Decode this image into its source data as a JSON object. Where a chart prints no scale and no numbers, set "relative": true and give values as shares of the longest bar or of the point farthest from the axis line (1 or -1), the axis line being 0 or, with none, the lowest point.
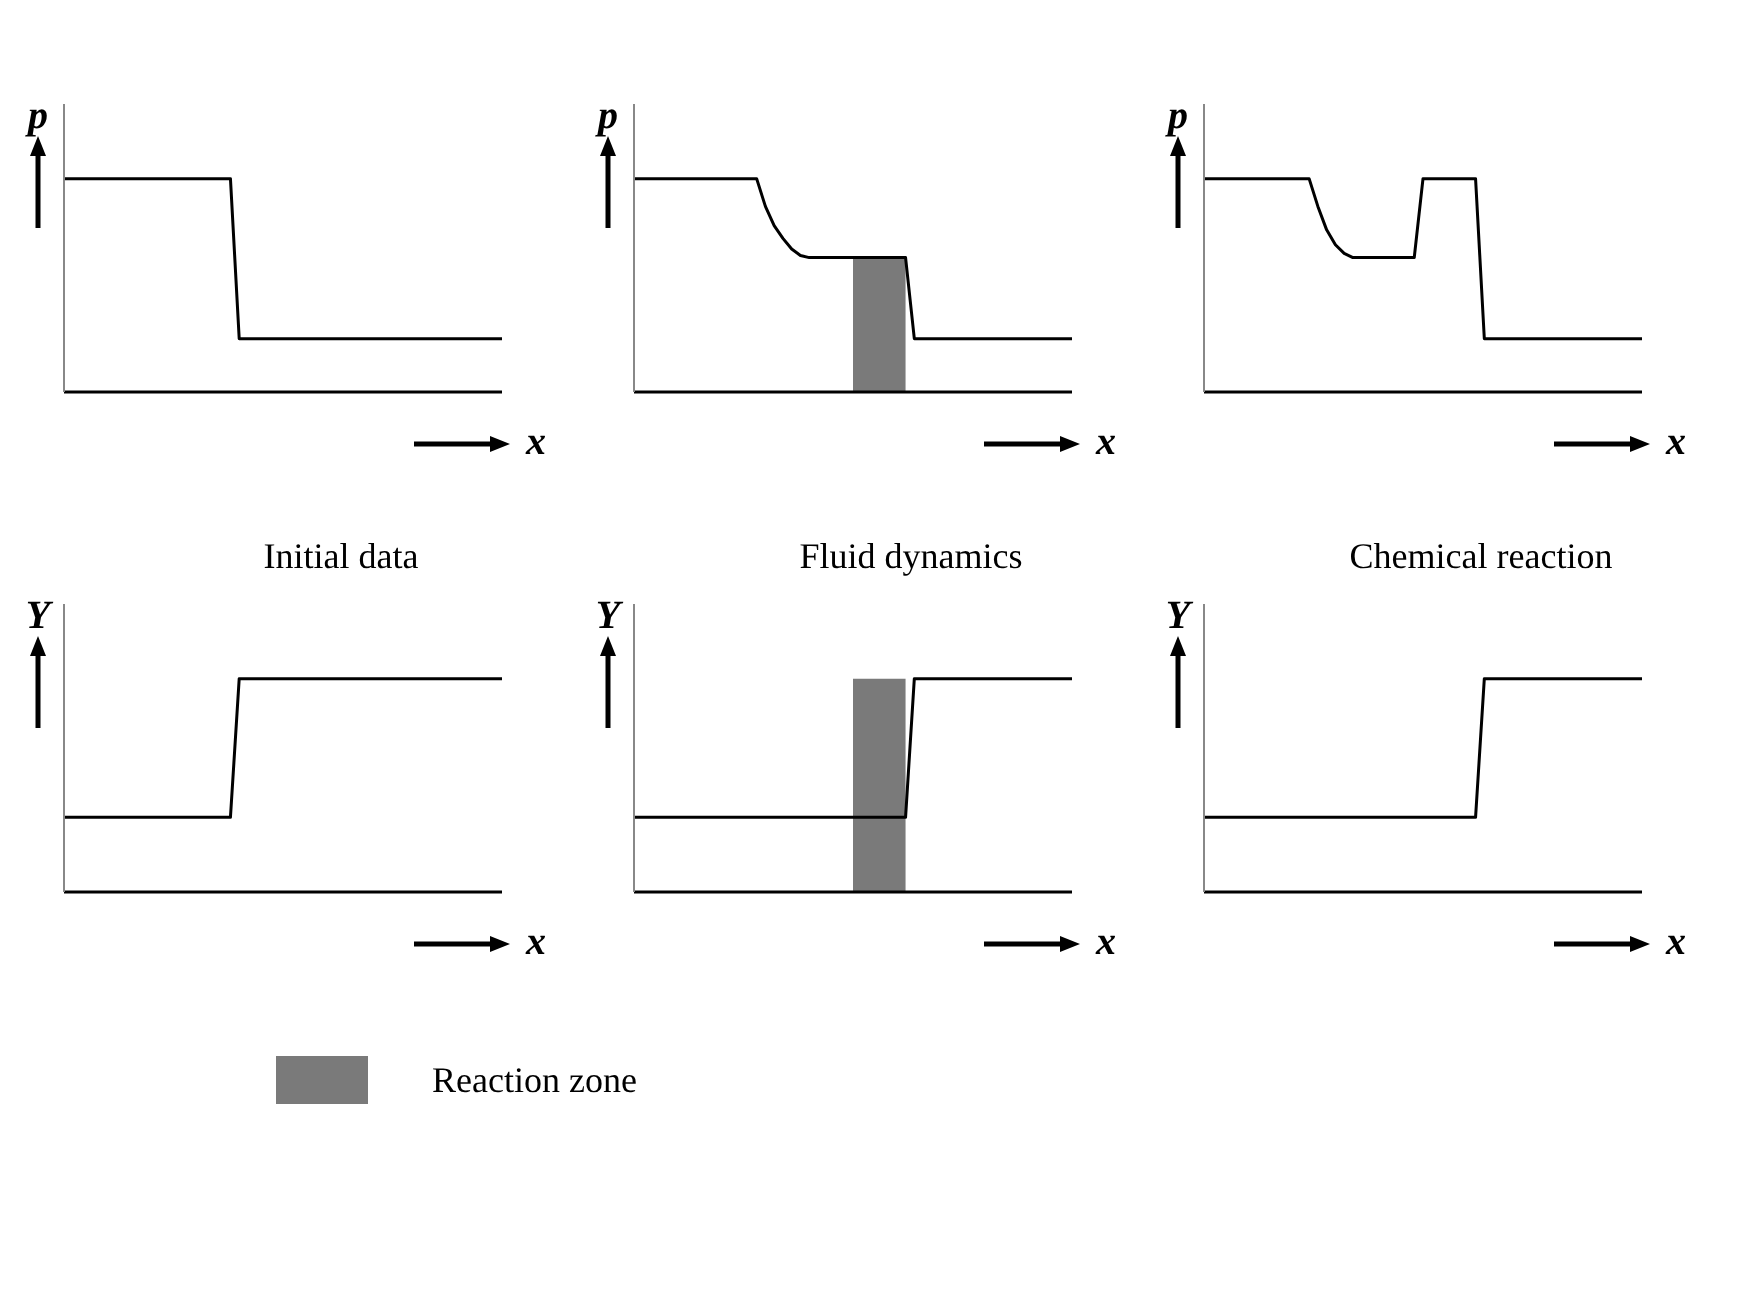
{
  "chart_data": [
    {
      "type": "line",
      "ylabel": "p",
      "xlabel": "x",
      "relative": true,
      "categories": [
        null,
        null,
        null,
        null,
        null,
        null,
        null,
        null,
        null,
        null,
        null,
        null,
        null,
        null,
        null,
        null,
        null,
        null,
        null,
        null,
        null,
        null,
        null,
        null,
        null,
        null,
        null,
        null,
        null,
        null,
        null,
        null,
        null,
        null,
        null,
        null,
        null,
        null,
        null,
        null,
        null,
        null,
        null,
        null,
        null,
        null,
        null,
        null,
        null,
        null,
        null
      ],
      "series": [
        {
          "color": "#000000",
          "values": [
            1,
            1,
            1,
            1,
            1,
            1,
            1,
            1,
            1,
            1,
            1,
            1,
            1,
            1,
            1,
            1,
            1,
            1,
            1,
            1,
            0.25,
            0.25,
            0.25,
            0.25,
            0.25,
            0.25,
            0.25,
            0.25,
            0.25,
            0.25,
            0.25,
            0.25,
            0.25,
            0.25,
            0.25,
            0.25,
            0.25,
            0.25,
            0.25,
            0.25,
            0.25,
            0.25,
            0.25,
            0.25,
            0.25,
            0.25,
            0.25,
            0.25,
            0.25,
            0.25,
            0.25
          ]
        }
      ]
    },
    {
      "type": "line",
      "ylabel": "p",
      "xlabel": "x",
      "relative": true,
      "categories": [
        null,
        null,
        null,
        null,
        null,
        null,
        null,
        null,
        null,
        null,
        null,
        null,
        null,
        null,
        null,
        null,
        null,
        null,
        null,
        null,
        null,
        null,
        null,
        null,
        null,
        null,
        null,
        null,
        null,
        null,
        null,
        null,
        null,
        null,
        null,
        null,
        null,
        null,
        null,
        null,
        null,
        null,
        null,
        null,
        null,
        null,
        null,
        null,
        null,
        null,
        null
      ],
      "series": [
        {
          "type": "area",
          "color": "#7a7a7a",
          "values": [
            null,
            null,
            null,
            null,
            null,
            null,
            null,
            null,
            null,
            null,
            null,
            null,
            null,
            null,
            null,
            null,
            null,
            null,
            null,
            null,
            null,
            null,
            null,
            null,
            null,
            0.63,
            0.63,
            0.63,
            0.63,
            0.63,
            0.63,
            0.63,
            null,
            null,
            null,
            null,
            null,
            null,
            null,
            null,
            null,
            null,
            null,
            null,
            null,
            null,
            null,
            null,
            null,
            null,
            null
          ]
        },
        {
          "color": "#000000",
          "values": [
            1,
            1,
            1,
            1,
            1,
            1,
            1,
            1,
            1,
            1,
            1,
            1,
            1,
            1,
            1,
            0.87,
            0.78,
            0.72,
            0.67,
            0.64,
            0.63,
            0.63,
            0.63,
            0.63,
            0.63,
            0.63,
            0.63,
            0.63,
            0.63,
            0.63,
            0.63,
            0.63,
            0.25,
            0.25,
            0.25,
            0.25,
            0.25,
            0.25,
            0.25,
            0.25,
            0.25,
            0.25,
            0.25,
            0.25,
            0.25,
            0.25,
            0.25,
            0.25,
            0.25,
            0.25,
            0.25
          ]
        }
      ]
    },
    {
      "type": "line",
      "ylabel": "p",
      "xlabel": "x",
      "relative": true,
      "categories": [
        null,
        null,
        null,
        null,
        null,
        null,
        null,
        null,
        null,
        null,
        null,
        null,
        null,
        null,
        null,
        null,
        null,
        null,
        null,
        null,
        null,
        null,
        null,
        null,
        null,
        null,
        null,
        null,
        null,
        null,
        null,
        null,
        null,
        null,
        null,
        null,
        null,
        null,
        null,
        null,
        null,
        null,
        null,
        null,
        null,
        null,
        null,
        null,
        null,
        null,
        null
      ],
      "series": [
        {
          "color": "#000000",
          "values": [
            1,
            1,
            1,
            1,
            1,
            1,
            1,
            1,
            1,
            1,
            1,
            1,
            1,
            0.87,
            0.76,
            0.69,
            0.65,
            0.63,
            0.63,
            0.63,
            0.63,
            0.63,
            0.63,
            0.63,
            0.63,
            1,
            1,
            1,
            1,
            1,
            1,
            1,
            0.25,
            0.25,
            0.25,
            0.25,
            0.25,
            0.25,
            0.25,
            0.25,
            0.25,
            0.25,
            0.25,
            0.25,
            0.25,
            0.25,
            0.25,
            0.25,
            0.25,
            0.25,
            0.25
          ]
        }
      ]
    },
    {
      "type": "line",
      "title": "Initial data",
      "ylabel": "Y",
      "xlabel": "x",
      "relative": true,
      "categories": [
        null,
        null,
        null,
        null,
        null,
        null,
        null,
        null,
        null,
        null,
        null,
        null,
        null,
        null,
        null,
        null,
        null,
        null,
        null,
        null,
        null,
        null,
        null,
        null,
        null,
        null,
        null,
        null,
        null,
        null,
        null,
        null,
        null,
        null,
        null,
        null,
        null,
        null,
        null,
        null,
        null,
        null,
        null,
        null,
        null,
        null,
        null,
        null,
        null,
        null,
        null
      ],
      "series": [
        {
          "color": "#000000",
          "values": [
            0.35,
            0.35,
            0.35,
            0.35,
            0.35,
            0.35,
            0.35,
            0.35,
            0.35,
            0.35,
            0.35,
            0.35,
            0.35,
            0.35,
            0.35,
            0.35,
            0.35,
            0.35,
            0.35,
            0.35,
            1,
            1,
            1,
            1,
            1,
            1,
            1,
            1,
            1,
            1,
            1,
            1,
            1,
            1,
            1,
            1,
            1,
            1,
            1,
            1,
            1,
            1,
            1,
            1,
            1,
            1,
            1,
            1,
            1,
            1,
            1
          ]
        }
      ]
    },
    {
      "type": "line",
      "title": "Fluid dynamics",
      "ylabel": "Y",
      "xlabel": "x",
      "relative": true,
      "legend": "bottom",
      "categories": [
        null,
        null,
        null,
        null,
        null,
        null,
        null,
        null,
        null,
        null,
        null,
        null,
        null,
        null,
        null,
        null,
        null,
        null,
        null,
        null,
        null,
        null,
        null,
        null,
        null,
        null,
        null,
        null,
        null,
        null,
        null,
        null,
        null,
        null,
        null,
        null,
        null,
        null,
        null,
        null,
        null,
        null,
        null,
        null,
        null,
        null,
        null,
        null,
        null,
        null,
        null
      ],
      "series": [
        {
          "type": "area",
          "name": "Reaction zone",
          "color": "#7a7a7a",
          "values": [
            null,
            null,
            null,
            null,
            null,
            null,
            null,
            null,
            null,
            null,
            null,
            null,
            null,
            null,
            null,
            null,
            null,
            null,
            null,
            null,
            null,
            null,
            null,
            null,
            null,
            1,
            1,
            1,
            1,
            1,
            1,
            1,
            null,
            null,
            null,
            null,
            null,
            null,
            null,
            null,
            null,
            null,
            null,
            null,
            null,
            null,
            null,
            null,
            null,
            null,
            null
          ]
        },
        {
          "color": "#000000",
          "values": [
            0.35,
            0.35,
            0.35,
            0.35,
            0.35,
            0.35,
            0.35,
            0.35,
            0.35,
            0.35,
            0.35,
            0.35,
            0.35,
            0.35,
            0.35,
            0.35,
            0.35,
            0.35,
            0.35,
            0.35,
            0.35,
            0.35,
            0.35,
            0.35,
            0.35,
            0.35,
            0.35,
            0.35,
            0.35,
            0.35,
            0.35,
            0.35,
            1,
            1,
            1,
            1,
            1,
            1,
            1,
            1,
            1,
            1,
            1,
            1,
            1,
            1,
            1,
            1,
            1,
            1,
            1
          ]
        }
      ]
    },
    {
      "type": "line",
      "title": "Chemical reaction",
      "ylabel": "Y",
      "xlabel": "x",
      "relative": true,
      "categories": [
        null,
        null,
        null,
        null,
        null,
        null,
        null,
        null,
        null,
        null,
        null,
        null,
        null,
        null,
        null,
        null,
        null,
        null,
        null,
        null,
        null,
        null,
        null,
        null,
        null,
        null,
        null,
        null,
        null,
        null,
        null,
        null,
        null,
        null,
        null,
        null,
        null,
        null,
        null,
        null,
        null,
        null,
        null,
        null,
        null,
        null,
        null,
        null,
        null,
        null,
        null
      ],
      "series": [
        {
          "color": "#000000",
          "values": [
            0.35,
            0.35,
            0.35,
            0.35,
            0.35,
            0.35,
            0.35,
            0.35,
            0.35,
            0.35,
            0.35,
            0.35,
            0.35,
            0.35,
            0.35,
            0.35,
            0.35,
            0.35,
            0.35,
            0.35,
            0.35,
            0.35,
            0.35,
            0.35,
            0.35,
            0.35,
            0.35,
            0.35,
            0.35,
            0.35,
            0.35,
            0.35,
            1,
            1,
            1,
            1,
            1,
            1,
            1,
            1,
            1,
            1,
            1,
            1,
            1,
            1,
            1,
            1,
            1,
            1,
            1
          ]
        }
      ]
    }
  ]
}
